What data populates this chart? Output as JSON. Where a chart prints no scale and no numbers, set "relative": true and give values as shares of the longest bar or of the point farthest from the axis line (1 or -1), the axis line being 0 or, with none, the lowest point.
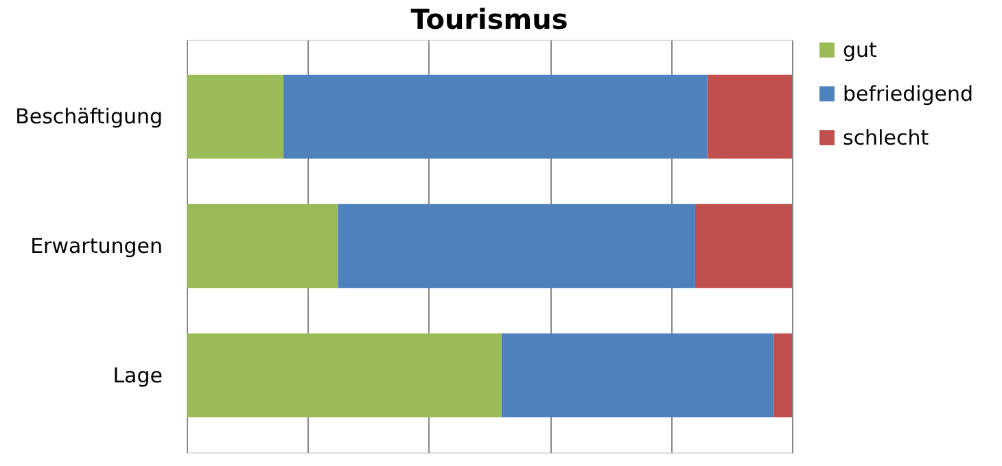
{
  "chart_data": {
    "type": "bar",
    "title": "Tourismus",
    "orientation": "horizontal",
    "stacked": true,
    "relative": true,
    "grid": "x",
    "legend": "right",
    "categories": [
      "Beschäftigung",
      "Erwartungen",
      "Lage"
    ],
    "series": [
      {
        "name": "gut",
        "color": "#9bbb59",
        "values": [
          0.16,
          0.25,
          0.52
        ]
      },
      {
        "name": "befriedigend",
        "color": "#4f81bd",
        "values": [
          0.7,
          0.59,
          0.45
        ]
      },
      {
        "name": "schlecht",
        "color": "#c0504d",
        "values": [
          0.14,
          0.16,
          0.03
        ]
      }
    ]
  }
}
